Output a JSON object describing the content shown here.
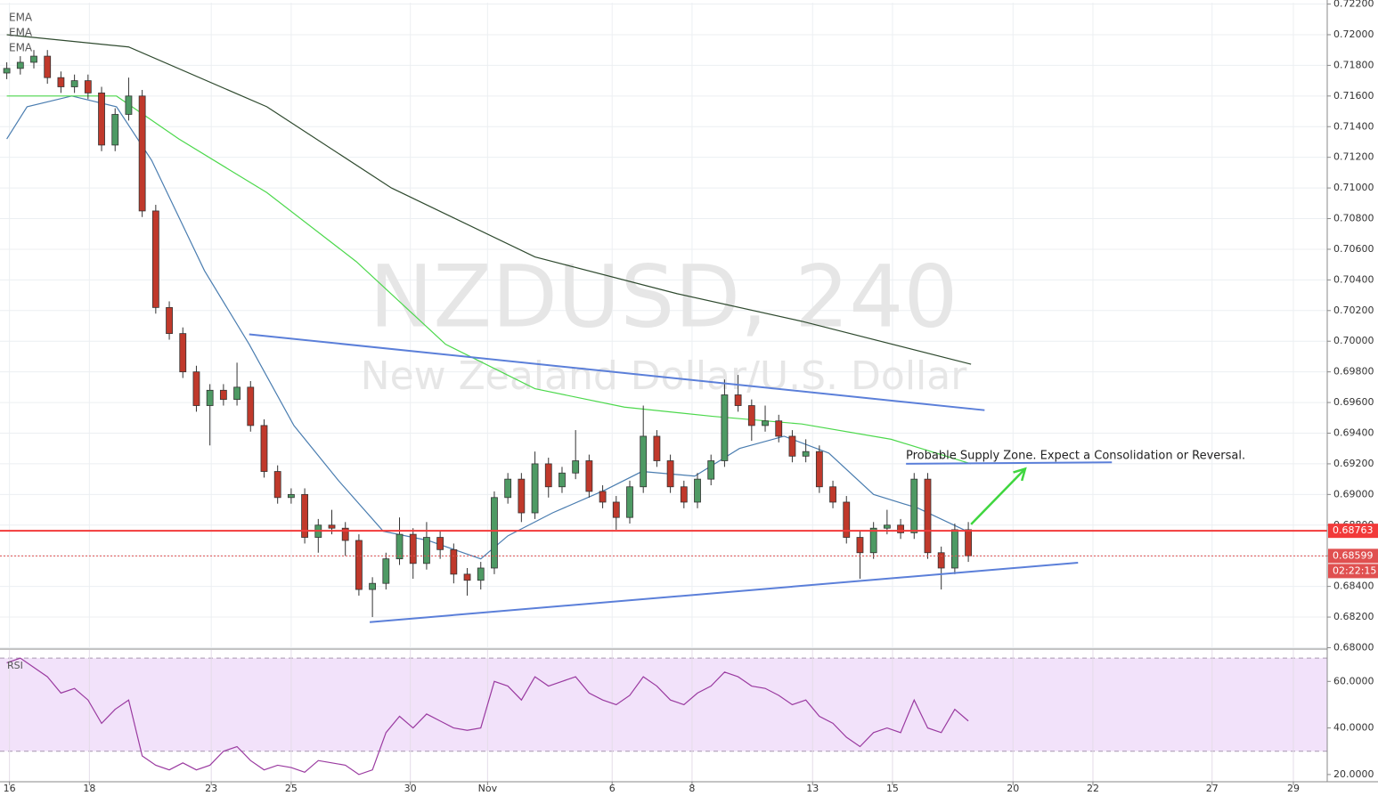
{
  "chart_data": {
    "type": "candlestick",
    "title": "NZDUSD, 240",
    "subtitle": "New Zealand Dollar/U.S. Dollar",
    "xlim": [
      -0.5,
      97.5
    ],
    "xticks": [
      {
        "value": 0.2,
        "label": "16"
      },
      {
        "value": 6.1,
        "label": "18"
      },
      {
        "value": 15.1,
        "label": "23"
      },
      {
        "value": 21,
        "label": "25"
      },
      {
        "value": 29.8,
        "label": "30"
      },
      {
        "value": 35.5,
        "label": "Nov"
      },
      {
        "value": 44.7,
        "label": "6"
      },
      {
        "value": 50.6,
        "label": "8"
      },
      {
        "value": 59.5,
        "label": "13"
      },
      {
        "value": 65.4,
        "label": "15"
      },
      {
        "value": 74.3,
        "label": "20"
      },
      {
        "value": 80.2,
        "label": "22"
      },
      {
        "value": 89,
        "label": "27"
      },
      {
        "value": 95,
        "label": "29"
      }
    ],
    "ylim": [
      0.67997,
      0.72209
    ],
    "yticks": [
      {
        "value": 0.68,
        "label": "0.68000"
      },
      {
        "value": 0.682,
        "label": "0.68200"
      },
      {
        "value": 0.684,
        "label": "0.68400"
      },
      {
        "value": 0.686,
        "label": "0.68600"
      },
      {
        "value": 0.688,
        "label": "0.68800"
      },
      {
        "value": 0.69,
        "label": "0.69000"
      },
      {
        "value": 0.692,
        "label": "0.69200"
      },
      {
        "value": 0.694,
        "label": "0.69400"
      },
      {
        "value": 0.696,
        "label": "0.69600"
      },
      {
        "value": 0.698,
        "label": "0.69800"
      },
      {
        "value": 0.7,
        "label": "0.70000"
      },
      {
        "value": 0.702,
        "label": "0.70200"
      },
      {
        "value": 0.704,
        "label": "0.70400"
      },
      {
        "value": 0.706,
        "label": "0.70600"
      },
      {
        "value": 0.708,
        "label": "0.70800"
      },
      {
        "value": 0.71,
        "label": "0.71000"
      },
      {
        "value": 0.712,
        "label": "0.71200"
      },
      {
        "value": 0.714,
        "label": "0.71400"
      },
      {
        "value": 0.716,
        "label": "0.71600"
      },
      {
        "value": 0.718,
        "label": "0.71800"
      },
      {
        "value": 0.72,
        "label": "0.72000"
      },
      {
        "value": 0.722,
        "label": "0.72200"
      }
    ],
    "grid": true,
    "up_color": "#4e9a64",
    "down_color": "#c0392b",
    "open": [
      0.7175,
      0.7178,
      0.7182,
      0.7186,
      0.7172,
      0.7166,
      0.717,
      0.7162,
      0.7128,
      0.7148,
      0.716,
      0.7085,
      0.7022,
      0.7005,
      0.698,
      0.6958,
      0.6968,
      0.6962,
      0.697,
      0.6945,
      0.6915,
      0.6898,
      0.69,
      0.6872,
      0.688,
      0.6878,
      0.687,
      0.6838,
      0.6842,
      0.6858,
      0.6874,
      0.6855,
      0.6872,
      0.6864,
      0.6848,
      0.6844,
      0.6852,
      0.6898,
      0.691,
      0.6888,
      0.692,
      0.6905,
      0.6914,
      0.6922,
      0.6902,
      0.6895,
      0.6885,
      0.6905,
      0.6938,
      0.6922,
      0.6905,
      0.6895,
      0.691,
      0.6922,
      0.6965,
      0.6958,
      0.6945,
      0.6948,
      0.6938,
      0.6925,
      0.6928,
      0.6905,
      0.6895,
      0.6872,
      0.6862,
      0.6878,
      0.688,
      0.6875,
      0.691,
      0.6862,
      0.6852,
      0.6877
    ],
    "high": [
      0.7182,
      0.7186,
      0.719,
      0.719,
      0.7176,
      0.7174,
      0.7174,
      0.7166,
      0.7152,
      0.7172,
      0.7164,
      0.7089,
      0.7026,
      0.7009,
      0.6984,
      0.6972,
      0.6972,
      0.6986,
      0.6974,
      0.6949,
      0.6919,
      0.6904,
      0.6904,
      0.6884,
      0.689,
      0.6882,
      0.6874,
      0.6846,
      0.6862,
      0.6885,
      0.6878,
      0.6882,
      0.6876,
      0.6868,
      0.6852,
      0.6856,
      0.6902,
      0.6914,
      0.6914,
      0.6928,
      0.6924,
      0.6918,
      0.6942,
      0.6926,
      0.6906,
      0.6899,
      0.6909,
      0.6958,
      0.6942,
      0.6926,
      0.6909,
      0.6914,
      0.6926,
      0.6975,
      0.6978,
      0.6962,
      0.6958,
      0.6952,
      0.6942,
      0.6936,
      0.6932,
      0.6909,
      0.6899,
      0.6876,
      0.6882,
      0.689,
      0.6884,
      0.6914,
      0.6914,
      0.6866,
      0.6881,
      0.6882
    ],
    "low": [
      0.7171,
      0.7174,
      0.7178,
      0.7168,
      0.7162,
      0.7162,
      0.7158,
      0.7124,
      0.7124,
      0.7144,
      0.7081,
      0.7018,
      0.7001,
      0.6976,
      0.6954,
      0.6932,
      0.6958,
      0.6958,
      0.6941,
      0.6911,
      0.6894,
      0.6894,
      0.6868,
      0.6862,
      0.6874,
      0.686,
      0.6834,
      0.682,
      0.6838,
      0.6854,
      0.6845,
      0.6851,
      0.6858,
      0.6842,
      0.6834,
      0.6838,
      0.6848,
      0.6894,
      0.6882,
      0.6884,
      0.6898,
      0.6901,
      0.691,
      0.6898,
      0.6891,
      0.6877,
      0.6881,
      0.6901,
      0.6918,
      0.6901,
      0.6891,
      0.6891,
      0.6906,
      0.6918,
      0.6954,
      0.6935,
      0.6941,
      0.6934,
      0.6921,
      0.6921,
      0.6901,
      0.6891,
      0.6868,
      0.6845,
      0.6858,
      0.6874,
      0.6871,
      0.6871,
      0.6858,
      0.6838,
      0.6848,
      0.6856
    ],
    "close": [
      0.7178,
      0.7182,
      0.7186,
      0.7172,
      0.7166,
      0.717,
      0.7162,
      0.7128,
      0.7148,
      0.716,
      0.7085,
      0.7022,
      0.7005,
      0.698,
      0.6958,
      0.6968,
      0.6962,
      0.697,
      0.6945,
      0.6915,
      0.6898,
      0.69,
      0.6872,
      0.688,
      0.6878,
      0.687,
      0.6838,
      0.6842,
      0.6858,
      0.6874,
      0.6855,
      0.6872,
      0.6864,
      0.6848,
      0.6844,
      0.6852,
      0.6898,
      0.691,
      0.6888,
      0.692,
      0.6905,
      0.6914,
      0.6922,
      0.6902,
      0.6895,
      0.6885,
      0.6905,
      0.6938,
      0.6922,
      0.6905,
      0.6895,
      0.691,
      0.6922,
      0.6965,
      0.6958,
      0.6945,
      0.6948,
      0.6938,
      0.6925,
      0.6928,
      0.6905,
      0.6895,
      0.6872,
      0.6862,
      0.6878,
      0.688,
      0.6875,
      0.691,
      0.6862,
      0.6852,
      0.6877,
      0.686
    ],
    "series": [
      {
        "name": "EMA",
        "color": "#4a7db0",
        "x": [
          0,
          1.5,
          4.8,
          8.1,
          10.7,
          14.6,
          17.9,
          21.2,
          24.5,
          27.8,
          31.1,
          35,
          37,
          40.3,
          44.2,
          46.9,
          50.8,
          54.1,
          57.4,
          60.7,
          64,
          67.3,
          70.9
        ],
        "values": [
          0.7132,
          0.7153,
          0.716,
          0.7153,
          0.7118,
          0.7046,
          0.6998,
          0.6945,
          0.6909,
          0.6876,
          0.687,
          0.6858,
          0.6873,
          0.6888,
          0.6903,
          0.6915,
          0.6912,
          0.693,
          0.6938,
          0.6927,
          0.69,
          0.6891,
          0.6876
        ]
      },
      {
        "name": "EMA",
        "color": "#4cd84c",
        "x": [
          0,
          8.1,
          12.7,
          19.2,
          25.8,
          32.4,
          39,
          45.6,
          52.1,
          58.7,
          65.3,
          71.2
        ],
        "values": [
          0.716,
          0.716,
          0.7132,
          0.7097,
          0.7052,
          0.6998,
          0.6969,
          0.6957,
          0.6951,
          0.6946,
          0.6936,
          0.692
        ]
      },
      {
        "name": "EMA",
        "color": "#2f4a2f",
        "x": [
          0,
          9,
          19.2,
          28.4,
          39,
          49.5,
          58.7,
          71.2
        ],
        "values": [
          0.72,
          0.7192,
          0.7153,
          0.71,
          0.7055,
          0.7031,
          0.7013,
          0.6985
        ]
      }
    ],
    "rsi": {
      "name": "RSI",
      "color": "#9a3aa0",
      "ylim": [
        16.9,
        73.5
      ],
      "yticks": [
        {
          "value": 20,
          "label": "20.0000"
        },
        {
          "value": 40,
          "label": "40.0000"
        },
        {
          "value": 60,
          "label": "60.0000"
        }
      ],
      "band": [
        30,
        70
      ],
      "values": [
        68,
        70,
        66,
        62,
        55,
        57,
        52,
        42,
        48,
        52,
        28,
        24,
        22,
        25,
        22,
        24,
        30,
        32,
        26,
        22,
        24,
        23,
        21,
        26,
        25,
        24,
        20,
        22,
        38,
        45,
        40,
        46,
        43,
        40,
        39,
        40,
        60,
        58,
        52,
        62,
        58,
        60,
        62,
        55,
        52,
        50,
        54,
        62,
        58,
        52,
        50,
        55,
        58,
        64,
        62,
        58,
        57,
        54,
        50,
        52,
        45,
        42,
        36,
        32,
        38,
        40,
        38,
        52,
        40,
        38,
        48,
        43
      ]
    },
    "price_lines": [
      {
        "value": 0.68763,
        "label": "0.68763",
        "color": "#f23a3a"
      },
      {
        "value": 0.68599,
        "label": "0.68599",
        "color": "#e05050"
      }
    ],
    "countdown": "02:22:15",
    "trendlines": [
      {
        "x": [
          17.9,
          72.2
        ],
        "y": [
          0.70045,
          0.6955
        ],
        "color": "#5b7fd9"
      },
      {
        "x": [
          26.8,
          79.1
        ],
        "y": [
          0.68167,
          0.68555
        ],
        "color": "#5b7fd9"
      },
      {
        "x": [
          66.4,
          81.6
        ],
        "y": [
          0.692,
          0.6921
        ],
        "color": "#5b7fd9"
      }
    ],
    "arrow": {
      "x": [
        71.2,
        75.2
      ],
      "y": [
        0.68805,
        0.69168
      ],
      "color": "#3fd63f"
    },
    "annotation": "Probable Supply Zone. Expect a Consolidation or Reversal."
  }
}
